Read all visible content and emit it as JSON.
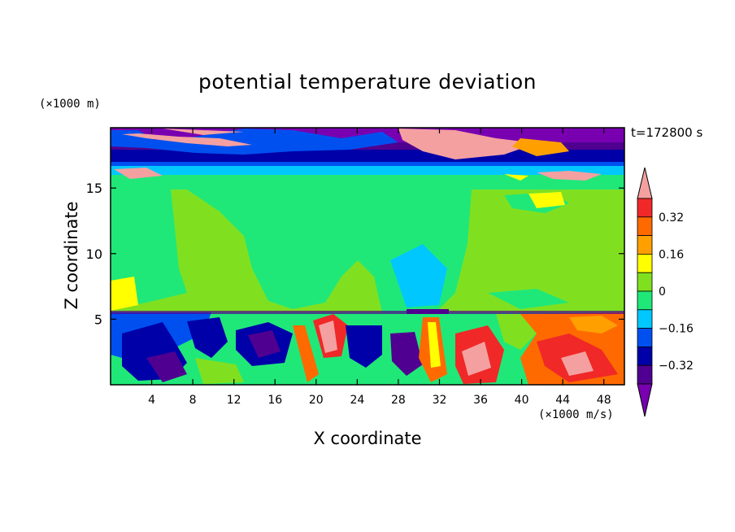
{
  "chart_data": {
    "type": "heatmap",
    "title": "potential temperature deviation",
    "xlabel": "X coordinate",
    "ylabel": "Z coordinate",
    "x_unit": "(×1000 m/s)",
    "y_unit": "(×1000 m)",
    "time_label": "t=172800 s",
    "xlim": [
      0,
      50
    ],
    "ylim": [
      0,
      19.6
    ],
    "x_ticks": [
      4,
      8,
      12,
      16,
      20,
      24,
      28,
      32,
      36,
      40,
      44,
      48
    ],
    "y_ticks": [
      5,
      10,
      15
    ],
    "colorbar": {
      "levels": [
        -0.4,
        -0.32,
        -0.24,
        -0.16,
        -0.08,
        0,
        0.08,
        0.16,
        0.24,
        0.32,
        0.4
      ],
      "labels": [
        "0.32",
        "0.16",
        "0",
        "−0.16",
        "−0.32"
      ],
      "label_values": [
        0.32,
        0.16,
        0,
        -0.16,
        -0.32
      ],
      "colors_top_to_bottom": [
        "#f4a0a0",
        "#f02828",
        "#ff6a00",
        "#ffa000",
        "#ffff00",
        "#80e020",
        "#20e878",
        "#00c8ff",
        "#0050f0",
        "#0000a8",
        "#500090",
        "#7800b0"
      ],
      "extend": "both"
    },
    "regions": [
      {
        "z": [
          0,
          5.5
        ],
        "value": "mixed -0.4 to 0.4 (turbulent boundary layer, strong positive near x=30-34 and x>40)"
      },
      {
        "z": [
          5.5,
          15
        ],
        "value": "approximately 0 to 0.08"
      },
      {
        "z": [
          15,
          17
        ],
        "value": "approximately -0.08"
      },
      {
        "z": [
          17,
          19.6
        ],
        "value": "mixed, strongly negative with positive patches"
      }
    ]
  },
  "icons": {
    "colorbar_top": "triangle-up",
    "colorbar_bottom": "triangle-down"
  }
}
